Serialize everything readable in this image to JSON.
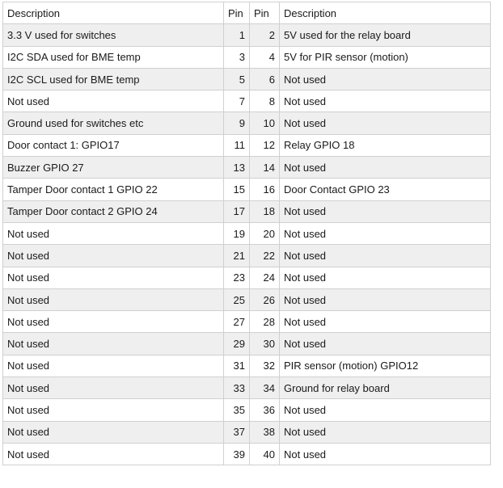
{
  "table": {
    "headers": [
      "Description",
      "Pin",
      "Pin",
      "Description"
    ],
    "rows": [
      [
        "3.3 V used for switches",
        "1",
        "2",
        "5V used for the relay board"
      ],
      [
        "I2C SDA used for BME temp",
        "3",
        "4",
        "5V for PIR sensor (motion)"
      ],
      [
        "I2C SCL used for BME temp",
        "5",
        "6",
        "Not used"
      ],
      [
        "Not used",
        "7",
        "8",
        "Not used"
      ],
      [
        "Ground used for switches etc",
        "9",
        "10",
        "Not used"
      ],
      [
        "Door contact 1: GPIO17",
        "11",
        "12",
        "Relay GPIO 18"
      ],
      [
        "Buzzer GPIO 27",
        "13",
        "14",
        "Not used"
      ],
      [
        "Tamper Door contact 1 GPIO 22",
        "15",
        "16",
        "Door Contact GPIO 23"
      ],
      [
        "Tamper Door contact 2 GPIO 24",
        "17",
        "18",
        "Not used"
      ],
      [
        "Not used",
        "19",
        "20",
        "Not used"
      ],
      [
        "Not used",
        "21",
        "22",
        "Not used"
      ],
      [
        "Not used",
        "23",
        "24",
        "Not used"
      ],
      [
        "Not used",
        "25",
        "26",
        "Not used"
      ],
      [
        "Not used",
        "27",
        "28",
        "Not used"
      ],
      [
        "Not used",
        "29",
        "30",
        "Not used"
      ],
      [
        "Not used",
        "31",
        "32",
        "PIR sensor (motion) GPIO12"
      ],
      [
        "Not used",
        "33",
        "34",
        "Ground for relay board"
      ],
      [
        "Not used",
        "35",
        "36",
        "Not used"
      ],
      [
        "Not used",
        "37",
        "38",
        "Not used"
      ],
      [
        "Not used",
        "39",
        "40",
        "Not used"
      ]
    ]
  }
}
